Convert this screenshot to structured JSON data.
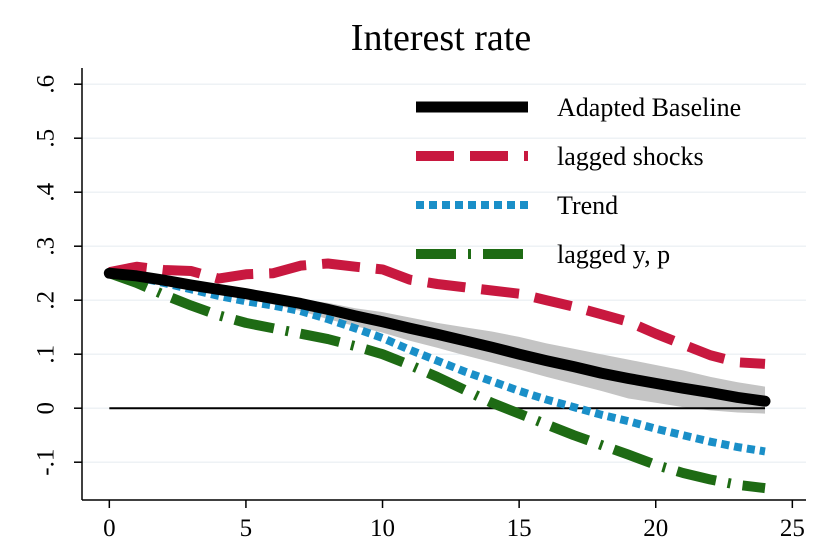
{
  "chart_data": {
    "type": "line",
    "title": "Interest rate",
    "xlabel": "",
    "ylabel": "",
    "xlim": [
      -1,
      25.5
    ],
    "ylim": [
      -0.17,
      0.63
    ],
    "x_ticks": [
      0,
      5,
      10,
      15,
      20,
      25
    ],
    "x_tick_labels": [
      "0",
      "5",
      "10",
      "15",
      "20",
      "25"
    ],
    "y_ticks": [
      -0.1,
      0,
      0.1,
      0.2,
      0.3,
      0.4,
      0.5,
      0.6
    ],
    "y_tick_labels": [
      "-.1",
      "0",
      ".1",
      ".2",
      ".3",
      ".4",
      ".5",
      ".6"
    ],
    "grid": "horizontal",
    "legend_position": "top-right",
    "zero_line": 0,
    "x": [
      0,
      1,
      2,
      3,
      4,
      5,
      6,
      7,
      8,
      9,
      10,
      11,
      12,
      13,
      14,
      15,
      16,
      17,
      18,
      19,
      20,
      21,
      22,
      23,
      24
    ],
    "confidence_band": {
      "lower": [
        0.25,
        0.24,
        0.232,
        0.222,
        0.212,
        0.202,
        0.192,
        0.18,
        0.165,
        0.152,
        0.14,
        0.125,
        0.112,
        0.098,
        0.085,
        0.072,
        0.058,
        0.045,
        0.032,
        0.018,
        0.01,
        0.002,
        -0.004,
        -0.008,
        -0.01
      ],
      "upper": [
        0.25,
        0.248,
        0.24,
        0.232,
        0.225,
        0.218,
        0.21,
        0.202,
        0.195,
        0.185,
        0.178,
        0.168,
        0.158,
        0.15,
        0.142,
        0.132,
        0.12,
        0.11,
        0.1,
        0.09,
        0.08,
        0.07,
        0.058,
        0.048,
        0.04
      ]
    },
    "series": [
      {
        "name": "Adapted Baseline",
        "color": "#000000",
        "style": "solid",
        "values": [
          0.25,
          0.245,
          0.237,
          0.228,
          0.22,
          0.212,
          0.203,
          0.194,
          0.183,
          0.171,
          0.16,
          0.148,
          0.137,
          0.125,
          0.113,
          0.1,
          0.088,
          0.077,
          0.065,
          0.055,
          0.046,
          0.037,
          0.029,
          0.02,
          0.013
        ]
      },
      {
        "name": "lagged shocks",
        "color": "#c8183f",
        "style": "dash",
        "values": [
          0.252,
          0.262,
          0.256,
          0.254,
          0.24,
          0.248,
          0.25,
          0.264,
          0.268,
          0.262,
          0.257,
          0.238,
          0.23,
          0.224,
          0.218,
          0.212,
          0.2,
          0.188,
          0.174,
          0.16,
          0.138,
          0.118,
          0.098,
          0.085,
          0.082
        ]
      },
      {
        "name": "Trend",
        "color": "#1a8fc8",
        "style": "dot",
        "values": [
          0.25,
          0.243,
          0.232,
          0.22,
          0.208,
          0.198,
          0.19,
          0.18,
          0.165,
          0.148,
          0.13,
          0.108,
          0.088,
          0.068,
          0.05,
          0.032,
          0.016,
          0.002,
          -0.012,
          -0.024,
          -0.038,
          -0.05,
          -0.062,
          -0.072,
          -0.08
        ]
      },
      {
        "name": "lagged y, p",
        "color": "#1e6b14",
        "style": "dashdot",
        "values": [
          0.25,
          0.232,
          0.21,
          0.19,
          0.172,
          0.158,
          0.148,
          0.138,
          0.128,
          0.115,
          0.1,
          0.08,
          0.058,
          0.034,
          0.01,
          -0.01,
          -0.03,
          -0.05,
          -0.068,
          -0.086,
          -0.105,
          -0.12,
          -0.132,
          -0.142,
          -0.148
        ]
      }
    ]
  }
}
